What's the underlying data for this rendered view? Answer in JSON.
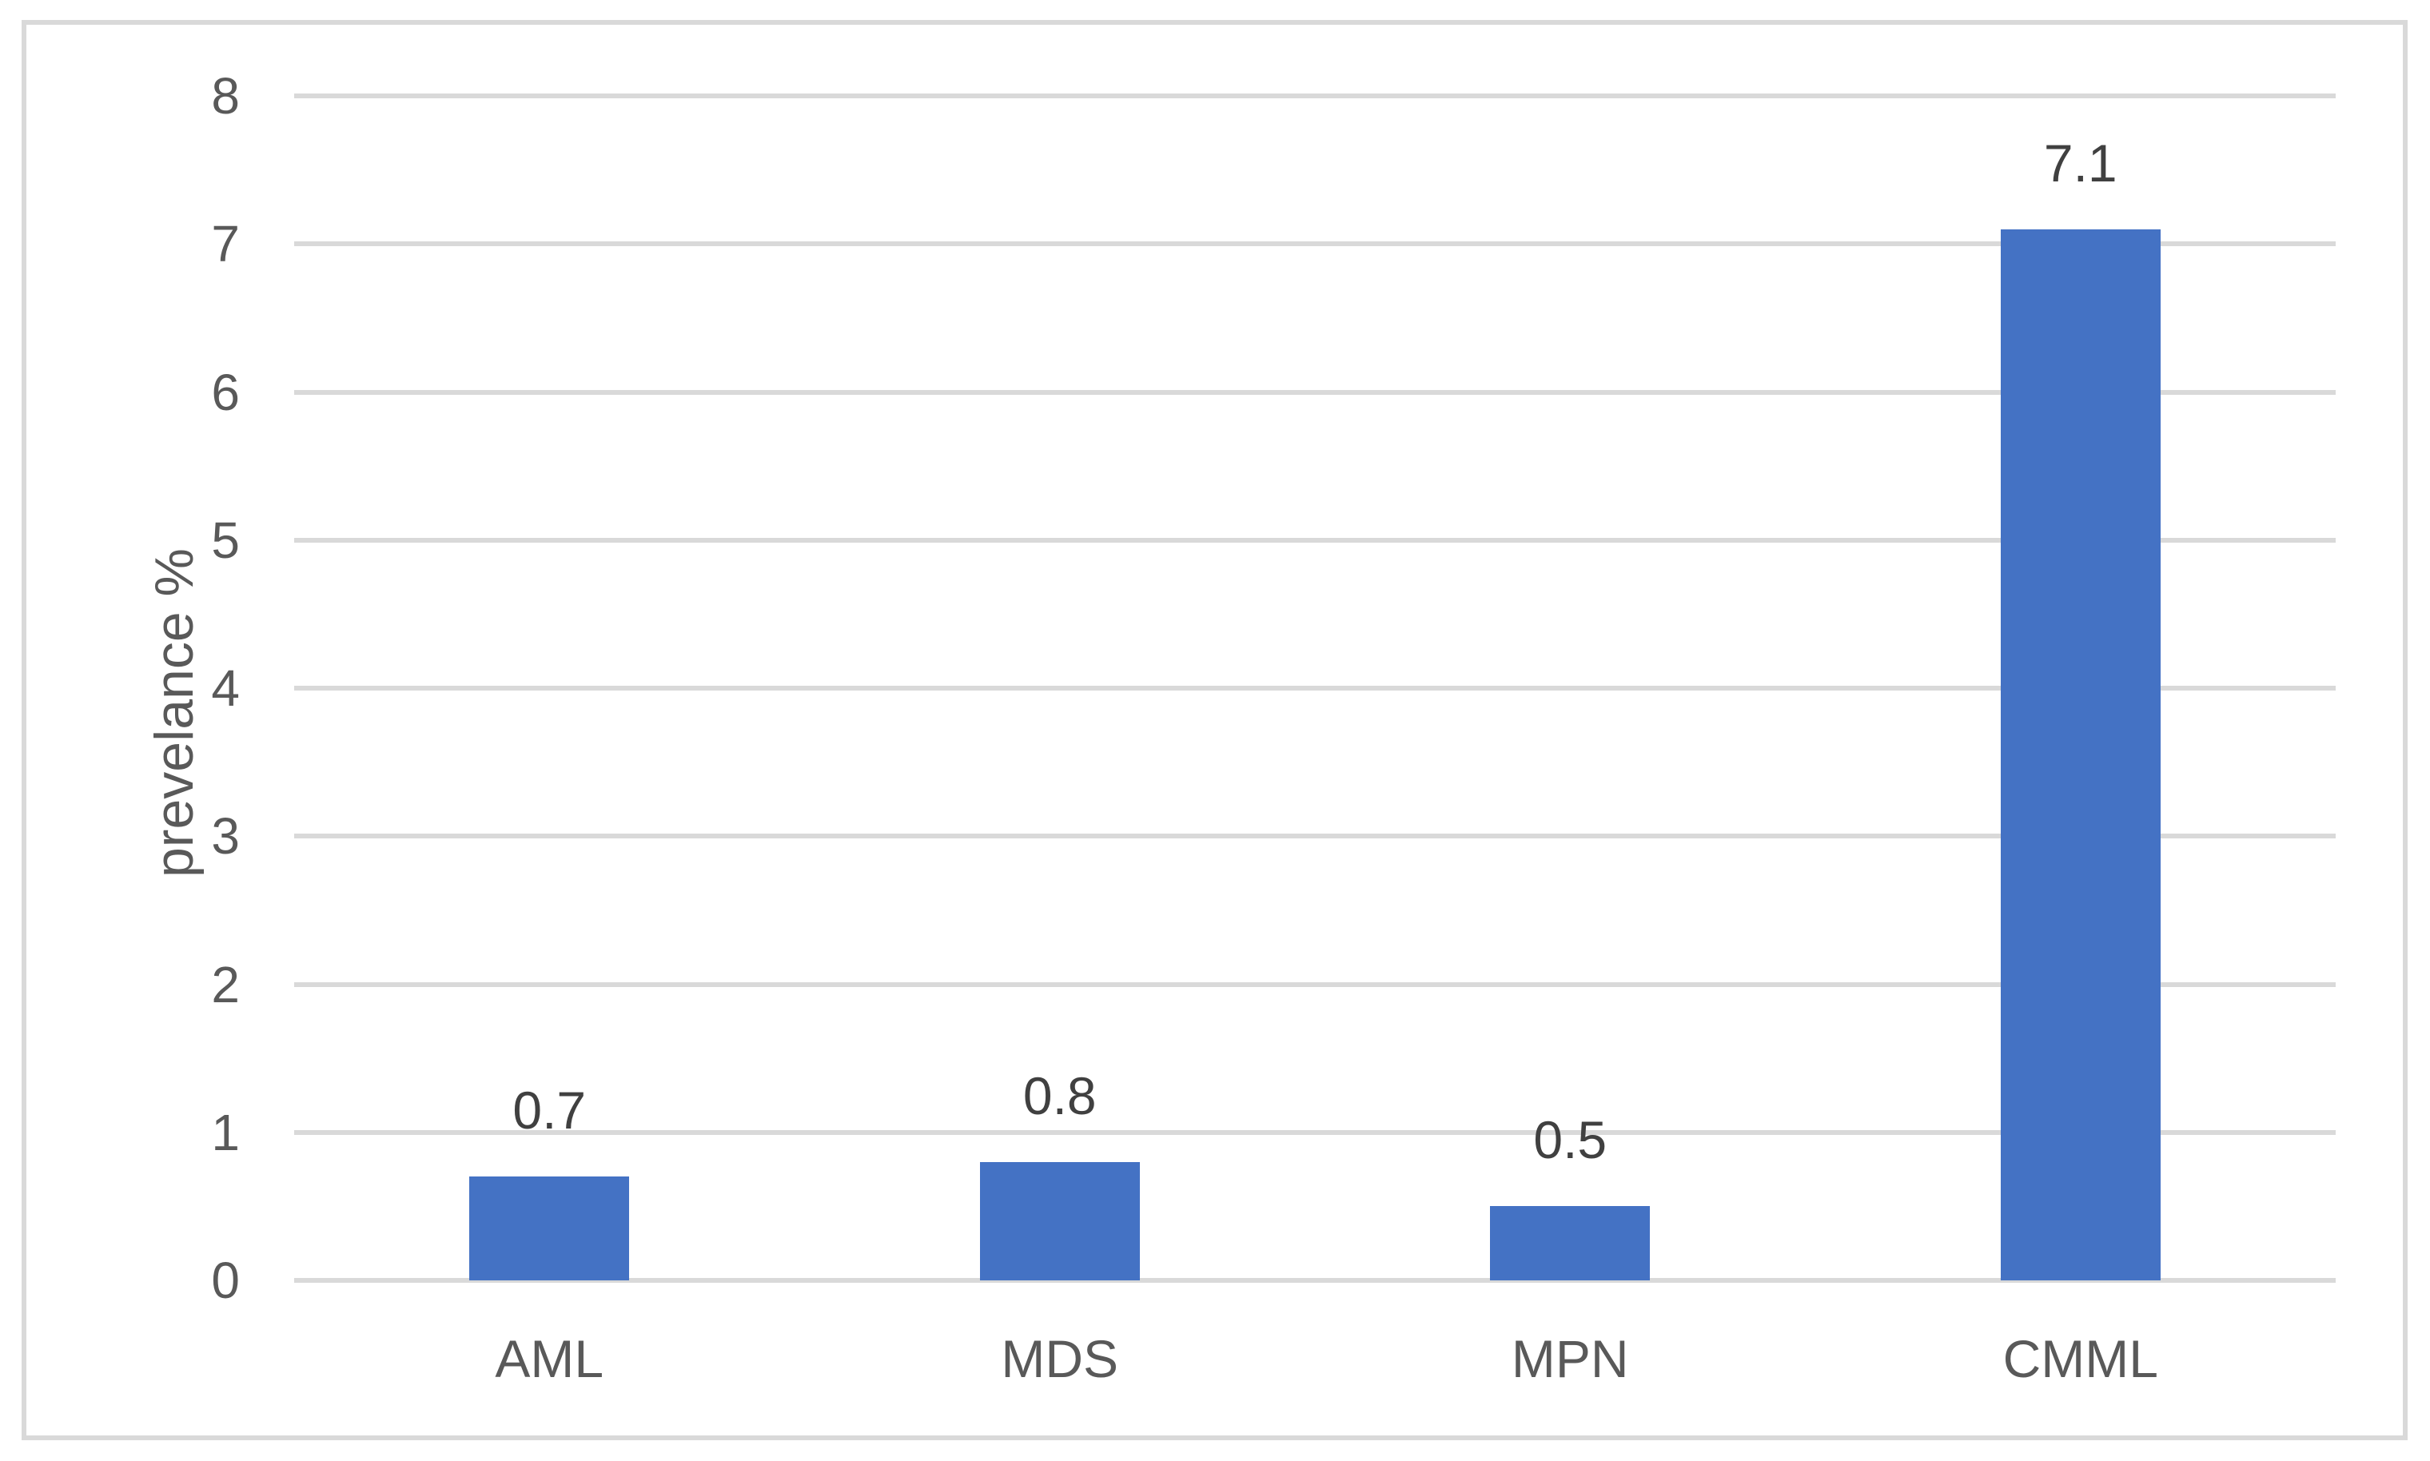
{
  "chart_data": {
    "type": "bar",
    "title": "",
    "categories": [
      "AML",
      "MDS",
      "MPN",
      "CMML"
    ],
    "values": [
      0.7,
      0.8,
      0.5,
      7.1
    ],
    "data_labels": [
      "0.7",
      "0.8",
      "0.5",
      "7.1"
    ],
    "xlabel": "",
    "ylabel": "prevelance %",
    "ylim": [
      0,
      8
    ],
    "yticks": [
      0,
      1,
      2,
      3,
      4,
      5,
      6,
      7,
      8
    ],
    "grid": "horizontal-major",
    "legend": "none"
  },
  "colors": {
    "bar": "#4472C4",
    "gridline": "#D9D9D9",
    "frame_border": "#D9D9D9",
    "tick_label": "#595959",
    "category_label": "#595959",
    "data_label": "#404040",
    "axis_title": "#595959",
    "background": "#FFFFFF"
  }
}
